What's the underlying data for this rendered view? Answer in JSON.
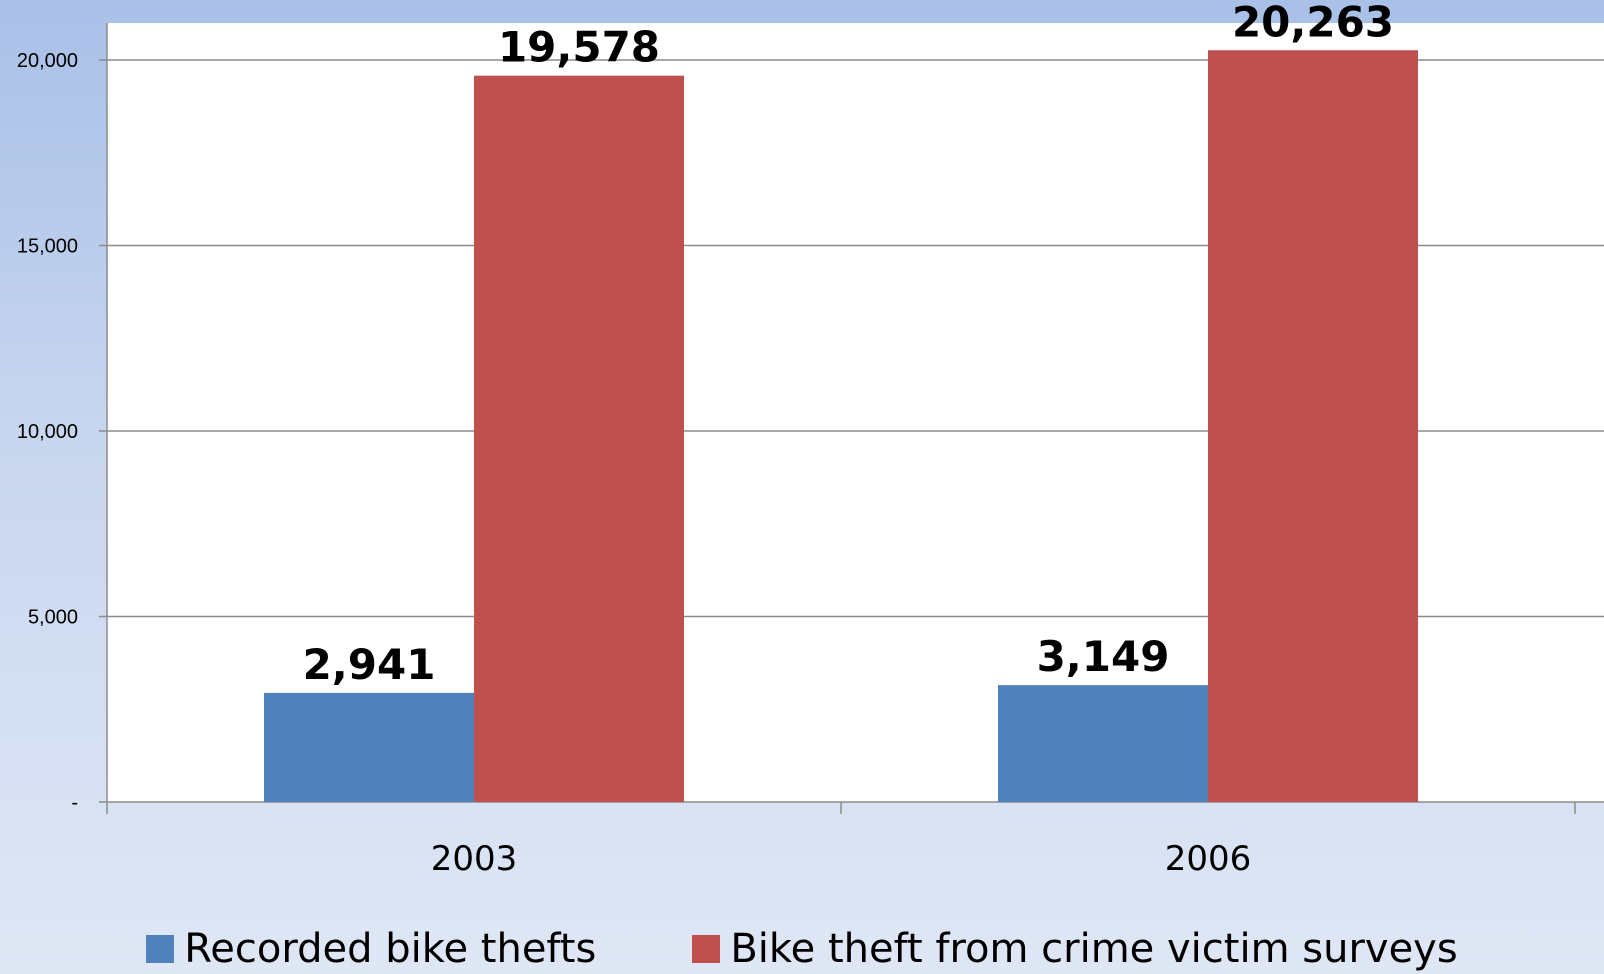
{
  "chart_data": {
    "type": "bar",
    "categories": [
      "2003",
      "2006"
    ],
    "series": [
      {
        "name": "Recorded bike thefts",
        "values": [
          2941,
          3149
        ],
        "labels": [
          "2,941",
          "3,149"
        ],
        "color": "#4f81bd"
      },
      {
        "name": "Bike theft from crime victim surveys",
        "values": [
          19578,
          20263
        ],
        "labels": [
          "19,578",
          "20,263"
        ],
        "color": "#c0504d"
      }
    ],
    "y_ticks": [
      {
        "value": 0,
        "label": "-"
      },
      {
        "value": 5000,
        "label": "5,000"
      },
      {
        "value": 10000,
        "label": "10,000"
      },
      {
        "value": 15000,
        "label": "15,000"
      },
      {
        "value": 20000,
        "label": "20,000"
      }
    ],
    "ylim": [
      0,
      20000
    ],
    "grid": true,
    "legend_position": "bottom"
  }
}
